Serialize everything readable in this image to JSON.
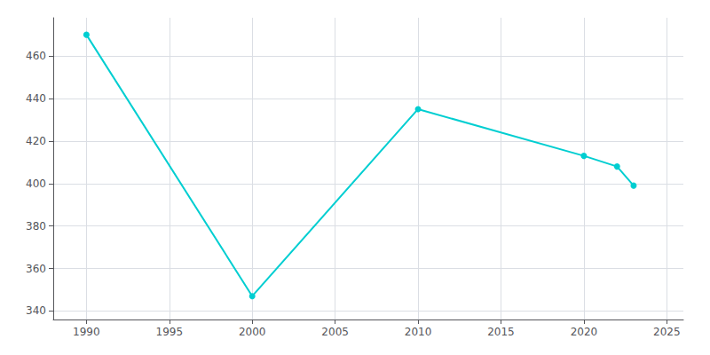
{
  "chart_data": {
    "type": "line",
    "x": [
      1990,
      2000,
      2010,
      2020,
      2022,
      2023
    ],
    "values": [
      470,
      347,
      435,
      413,
      408,
      399
    ],
    "color": "#00CED1",
    "marker": "circle",
    "xlim": [
      1988,
      2026
    ],
    "ylim": [
      336,
      478
    ],
    "xticks": [
      1990,
      1995,
      2000,
      2005,
      2010,
      2015,
      2020,
      2025
    ],
    "yticks": [
      340,
      360,
      380,
      400,
      420,
      440,
      460
    ],
    "grid": true
  }
}
